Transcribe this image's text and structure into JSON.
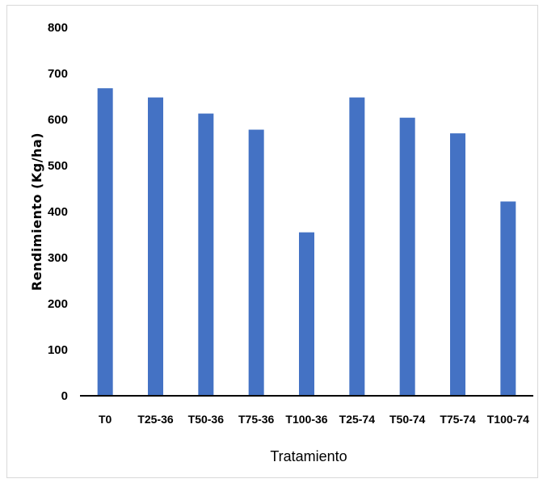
{
  "chart_data": {
    "type": "bar",
    "title": "",
    "xlabel": "Tratamiento",
    "ylabel": "Rendimiento (Kg/ha)",
    "categories": [
      "T0",
      "T25-36",
      "T50-36",
      "T75-36",
      "T100-36",
      "T25-74",
      "T50-74",
      "T75-74",
      "T100-74"
    ],
    "values": [
      668,
      648,
      613,
      578,
      355,
      648,
      604,
      570,
      422
    ],
    "ylim": [
      0,
      800
    ],
    "yticks": [
      "0",
      "100",
      "200",
      "300",
      "400",
      "500",
      "600",
      "700",
      "800"
    ],
    "bar_color": "#4472C4",
    "grid": false,
    "legend": "none"
  }
}
